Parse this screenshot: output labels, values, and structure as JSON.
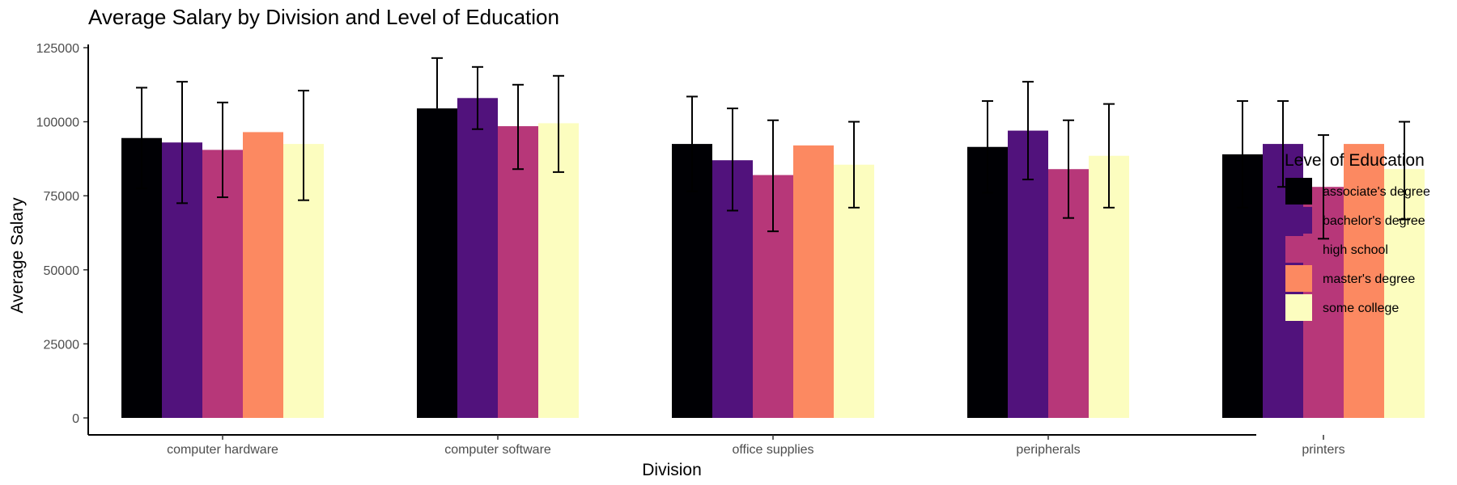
{
  "chart_data": {
    "type": "bar",
    "title": "Average Salary by Division and Level of Education",
    "xlabel": "Division",
    "ylabel": "Average Salary",
    "ylim": [
      0,
      125000
    ],
    "yticks": [
      0,
      25000,
      50000,
      75000,
      100000,
      125000
    ],
    "grid": false,
    "legend": {
      "title": "Level of Education",
      "placement": "right"
    },
    "categories": [
      "computer hardware",
      "computer software",
      "office supplies",
      "peripherals",
      "printers"
    ],
    "series": [
      {
        "name": "associate's degree",
        "color": "#000004",
        "values": [
          94500,
          104500,
          92500,
          91500,
          89000
        ],
        "error_low": [
          77500,
          null,
          76500,
          76000,
          71000
        ],
        "error_high": [
          111500,
          121500,
          108500,
          107000,
          107000
        ]
      },
      {
        "name": "bachelor's degree",
        "color": "#51127c",
        "values": [
          93000,
          108000,
          87000,
          97000,
          92500
        ],
        "error_low": [
          72500,
          97500,
          70000,
          80500,
          78000
        ],
        "error_high": [
          113500,
          118500,
          104500,
          113500,
          107000
        ]
      },
      {
        "name": "high school",
        "color": "#b73779",
        "values": [
          90500,
          98500,
          82000,
          84000,
          78000
        ],
        "error_low": [
          74500,
          84000,
          63000,
          67500,
          60500
        ],
        "error_high": [
          106500,
          112500,
          100500,
          100500,
          95500
        ]
      },
      {
        "name": "master's degree",
        "color": "#fc8961",
        "values": [
          96500,
          null,
          92000,
          null,
          92500
        ],
        "error_low": [
          null,
          null,
          null,
          null,
          null
        ],
        "error_high": [
          null,
          null,
          null,
          null,
          null
        ]
      },
      {
        "name": "some college",
        "color": "#fcfdbf",
        "values": [
          92500,
          99500,
          85500,
          88500,
          84000
        ],
        "error_low": [
          73500,
          83000,
          71000,
          71000,
          67000
        ],
        "error_high": [
          110500,
          115500,
          100000,
          106000,
          100000
        ]
      }
    ]
  }
}
